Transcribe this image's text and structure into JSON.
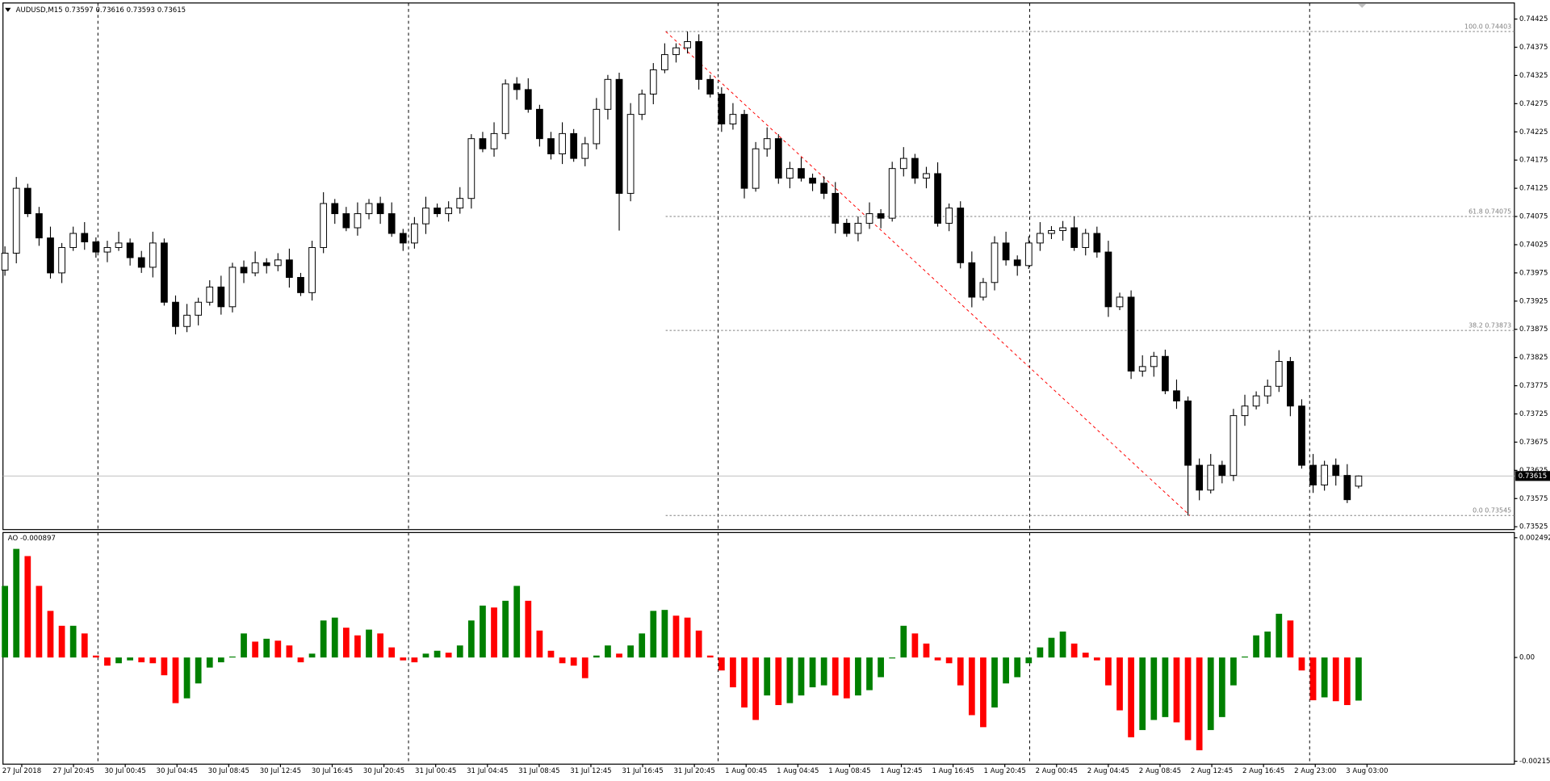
{
  "chart_data": [
    {
      "type": "candlestick",
      "title": "AUDUSD,M15 0.73597 0.73616 0.73593 0.73615",
      "bull_color": "#ffffff",
      "bear_color": "#000000",
      "open": [
        0.7398,
        0.7401,
        0.74125,
        0.7408,
        0.74037,
        0.73975,
        0.7402,
        0.74045,
        0.7403,
        0.74012,
        0.7402,
        0.74028,
        0.74002,
        0.73985,
        0.74028,
        0.73923,
        0.7388,
        0.739,
        0.73923,
        0.7395,
        0.73915,
        0.73985,
        0.73975,
        0.73993,
        0.73988,
        0.73998,
        0.73967,
        0.7394,
        0.7402,
        0.74098,
        0.7408,
        0.74055,
        0.7408,
        0.74098,
        0.7408,
        0.74045,
        0.74028,
        0.74062,
        0.7409,
        0.7408,
        0.7409,
        0.74107,
        0.74213,
        0.74195,
        0.74222,
        0.7431,
        0.743,
        0.74265,
        0.74213,
        0.74186,
        0.74222,
        0.74178,
        0.74204,
        0.74265,
        0.74318,
        0.74116,
        0.74256,
        0.74292,
        0.74335,
        0.74362,
        0.74374,
        0.74385,
        0.74318,
        0.74292,
        0.74239,
        0.74256,
        0.74125,
        0.74195,
        0.74213,
        0.74143,
        0.7416,
        0.74143,
        0.74134,
        0.74116,
        0.74063,
        0.74045,
        0.74063,
        0.7408,
        0.74072,
        0.7416,
        0.74178,
        0.74143,
        0.74151,
        0.74063,
        0.7409,
        0.73993,
        0.73932,
        0.73958,
        0.74028,
        0.73998,
        0.73988,
        0.74028,
        0.74045,
        0.7405,
        0.74055,
        0.7402,
        0.74045,
        0.74012,
        0.73915,
        0.73932,
        0.73801,
        0.73809,
        0.73827,
        0.73766,
        0.73748,
        0.73634,
        0.7359,
        0.73634,
        0.73616,
        0.73722,
        0.73739,
        0.73757,
        0.73774,
        0.73818,
        0.73739,
        0.73634,
        0.73599,
        0.73634,
        0.73616,
        0.73597
      ],
      "high": [
        0.74022,
        0.74145,
        0.74133,
        0.74092,
        0.74057,
        0.74028,
        0.74057,
        0.74065,
        0.74038,
        0.74032,
        0.74048,
        0.74036,
        0.74014,
        0.74048,
        0.74036,
        0.73935,
        0.7392,
        0.73931,
        0.73962,
        0.7397,
        0.73993,
        0.73997,
        0.74013,
        0.74001,
        0.7401,
        0.74018,
        0.73975,
        0.74032,
        0.74118,
        0.74106,
        0.74092,
        0.741,
        0.74106,
        0.7411,
        0.741,
        0.74053,
        0.74074,
        0.7411,
        0.74098,
        0.74102,
        0.74127,
        0.74221,
        0.74225,
        0.74242,
        0.74318,
        0.74322,
        0.7432,
        0.74273,
        0.74225,
        0.74242,
        0.7423,
        0.74216,
        0.74285,
        0.74326,
        0.7433,
        0.74276,
        0.743,
        0.74347,
        0.74382,
        0.74382,
        0.74403,
        0.74398,
        0.74326,
        0.74304,
        0.74276,
        0.74264,
        0.74207,
        0.74233,
        0.74221,
        0.74172,
        0.7418,
        0.74151,
        0.74146,
        0.74136,
        0.74071,
        0.74075,
        0.741,
        0.74088,
        0.74172,
        0.74198,
        0.74186,
        0.74163,
        0.74171,
        0.74098,
        0.74102,
        0.74013,
        0.73966,
        0.7404,
        0.74048,
        0.74006,
        0.7404,
        0.74065,
        0.74058,
        0.74067,
        0.74075,
        0.74053,
        0.74057,
        0.74032,
        0.7394,
        0.73944,
        0.73829,
        0.73835,
        0.73839,
        0.73786,
        0.73756,
        0.73646,
        0.73654,
        0.73642,
        0.73734,
        0.73759,
        0.73765,
        0.73786,
        0.73838,
        0.73826,
        0.73751,
        0.73654,
        0.73642,
        0.73646,
        0.73636,
        0.73616
      ],
      "low": [
        0.7397,
        0.73992,
        0.74074,
        0.74023,
        0.73965,
        0.73957,
        0.74014,
        0.74016,
        0.74002,
        0.73994,
        0.74014,
        0.73988,
        0.73975,
        0.73967,
        0.73917,
        0.73866,
        0.7387,
        0.73882,
        0.73917,
        0.73901,
        0.73905,
        0.73957,
        0.73969,
        0.73974,
        0.73978,
        0.73949,
        0.73934,
        0.73926,
        0.7401,
        0.74062,
        0.74049,
        0.74041,
        0.7407,
        0.74062,
        0.74039,
        0.74014,
        0.74018,
        0.74044,
        0.74074,
        0.74066,
        0.7408,
        0.74089,
        0.74189,
        0.74181,
        0.74212,
        0.74282,
        0.74259,
        0.74199,
        0.74176,
        0.74168,
        0.74172,
        0.74164,
        0.74194,
        0.74247,
        0.7405,
        0.74102,
        0.74246,
        0.74274,
        0.74329,
        0.74348,
        0.74364,
        0.743,
        0.74286,
        0.74225,
        0.74229,
        0.74107,
        0.74119,
        0.74181,
        0.74133,
        0.74125,
        0.74137,
        0.7412,
        0.74106,
        0.74045,
        0.74039,
        0.74031,
        0.74053,
        0.74054,
        0.74066,
        0.74146,
        0.74133,
        0.74125,
        0.74057,
        0.74049,
        0.73983,
        0.73914,
        0.73926,
        0.73944,
        0.73988,
        0.7397,
        0.73982,
        0.74014,
        0.74035,
        0.74032,
        0.74014,
        0.74006,
        0.74002,
        0.73897,
        0.73909,
        0.73787,
        0.73791,
        0.73791,
        0.7376,
        0.73734,
        0.73545,
        0.73572,
        0.73584,
        0.73602,
        0.73606,
        0.73704,
        0.73733,
        0.73743,
        0.73764,
        0.73721,
        0.73628,
        0.73585,
        0.73589,
        0.73598,
        0.73567,
        0.73593
      ],
      "close": [
        0.7401,
        0.74125,
        0.7408,
        0.74037,
        0.73975,
        0.7402,
        0.74045,
        0.7403,
        0.74012,
        0.7402,
        0.74028,
        0.74002,
        0.73985,
        0.74028,
        0.73923,
        0.7388,
        0.739,
        0.73923,
        0.7395,
        0.73915,
        0.73985,
        0.73975,
        0.73993,
        0.73988,
        0.73998,
        0.73967,
        0.7394,
        0.7402,
        0.74098,
        0.7408,
        0.74055,
        0.7408,
        0.74098,
        0.7408,
        0.74045,
        0.74028,
        0.74062,
        0.7409,
        0.7408,
        0.7409,
        0.74107,
        0.74213,
        0.74195,
        0.74222,
        0.7431,
        0.743,
        0.74265,
        0.74213,
        0.74186,
        0.74222,
        0.74178,
        0.74204,
        0.74265,
        0.74318,
        0.74116,
        0.74256,
        0.74292,
        0.74335,
        0.74362,
        0.74374,
        0.74385,
        0.74318,
        0.74292,
        0.74239,
        0.74256,
        0.74125,
        0.74195,
        0.74213,
        0.74143,
        0.7416,
        0.74143,
        0.74134,
        0.74116,
        0.74063,
        0.74045,
        0.74063,
        0.7408,
        0.74072,
        0.7416,
        0.74178,
        0.74143,
        0.74151,
        0.74063,
        0.7409,
        0.73993,
        0.73932,
        0.73958,
        0.74028,
        0.73998,
        0.73988,
        0.74028,
        0.74045,
        0.7405,
        0.74055,
        0.7402,
        0.74045,
        0.74012,
        0.73915,
        0.73932,
        0.73801,
        0.73809,
        0.73827,
        0.73766,
        0.73748,
        0.73634,
        0.7359,
        0.73634,
        0.73616,
        0.73722,
        0.73739,
        0.73757,
        0.73774,
        0.73818,
        0.73739,
        0.73634,
        0.73599,
        0.73634,
        0.73616,
        0.73573,
        0.73615
      ],
      "ylim": [
        0.7352,
        0.7445
      ],
      "yticks": [
        0.74425,
        0.74375,
        0.74325,
        0.74275,
        0.74225,
        0.74175,
        0.74125,
        0.74075,
        0.74025,
        0.73975,
        0.73925,
        0.73875,
        0.73825,
        0.73775,
        0.73725,
        0.73675,
        0.73625,
        0.73575,
        0.73525
      ],
      "fib_levels": [
        {
          "value": 0.74403,
          "label": "100.0 0.74403"
        },
        {
          "value": 0.74075,
          "label": "61.8 0.74075"
        },
        {
          "value": 0.73873,
          "label": "38.2 0.73873"
        },
        {
          "value": 0.73545,
          "label": "0.0 0.73545"
        }
      ],
      "fib_color": "#808080",
      "trend_color": "#ff0000",
      "xlabels": [
        "27 Jul 2018",
        "27 Jul 20:45",
        "30 Jul 00:45",
        "30 Jul 04:45",
        "30 Jul 08:45",
        "30 Jul 12:45",
        "30 Jul 16:45",
        "30 Jul 20:45",
        "31 Jul 00:45",
        "31 Jul 04:45",
        "31 Jul 08:45",
        "31 Jul 12:45",
        "31 Jul 16:45",
        "31 Jul 20:45",
        "1 Aug 00:45",
        "1 Aug 04:45",
        "1 Aug 08:45",
        "1 Aug 12:45",
        "1 Aug 16:45",
        "1 Aug 20:45",
        "2 Aug 00:45",
        "2 Aug 04:45",
        "2 Aug 08:45",
        "2 Aug 12:45",
        "2 Aug 16:45",
        "2 Aug 23:00",
        "3 Aug 03:00"
      ]
    },
    {
      "type": "bar",
      "title": "AO -0.000897",
      "up_color": "#008000",
      "down_color": "#ff0000",
      "values": [
        0.00149,
        0.00226,
        0.00211,
        0.00149,
        0.00097,
        0.00066,
        0.00066,
        0.0005,
        4e-05,
        -0.00017,
        -0.00012,
        -6e-05,
        -0.0001,
        -0.00012,
        -0.00037,
        -0.00095,
        -0.00085,
        -0.00054,
        -0.00021,
        -0.0001,
        2e-05,
        0.0005,
        0.00033,
        0.00039,
        0.00035,
        0.00025,
        -0.0001,
        8e-05,
        0.00077,
        0.00083,
        0.00062,
        0.00046,
        0.00058,
        0.0005,
        0.00021,
        -6e-05,
        -0.0001,
        8e-05,
        0.00014,
        0.0001,
        0.00025,
        0.00077,
        0.00108,
        0.00104,
        0.00118,
        0.00149,
        0.00118,
        0.00056,
        0.00014,
        -0.00012,
        -0.00017,
        -0.00043,
        4e-05,
        0.00025,
        8e-05,
        0.00025,
        0.0005,
        0.00097,
        0.00099,
        0.00087,
        0.00083,
        0.00056,
        4e-05,
        -0.00027,
        -0.00062,
        -0.00104,
        -0.0013,
        -0.00079,
        -0.00099,
        -0.00095,
        -0.00079,
        -0.00062,
        -0.00058,
        -0.00079,
        -0.00085,
        -0.00079,
        -0.00068,
        -0.00041,
        -2e-05,
        0.00066,
        0.0005,
        0.00029,
        -6e-05,
        -0.00012,
        -0.00058,
        -0.0012,
        -0.00145,
        -0.00104,
        -0.00054,
        -0.00041,
        -0.00012,
        0.00021,
        0.00041,
        0.00054,
        0.00029,
        0.0001,
        -6e-05,
        -0.00058,
        -0.0011,
        -0.00166,
        -0.00151,
        -0.0013,
        -0.00124,
        -0.00135,
        -0.00172,
        -0.00193,
        -0.00151,
        -0.00124,
        -0.00058,
        2e-05,
        0.00046,
        0.00054,
        0.00091,
        0.00077,
        -0.00027,
        -0.00089,
        -0.00083,
        -0.00091,
        -0.00099,
        -0.000897
      ],
      "ylim": [
        -0.00222,
        0.0026
      ],
      "yticks": [
        0.002492,
        {
          "value": 0,
          "label": "0.00"
        },
        -0.002159
      ]
    }
  ]
}
